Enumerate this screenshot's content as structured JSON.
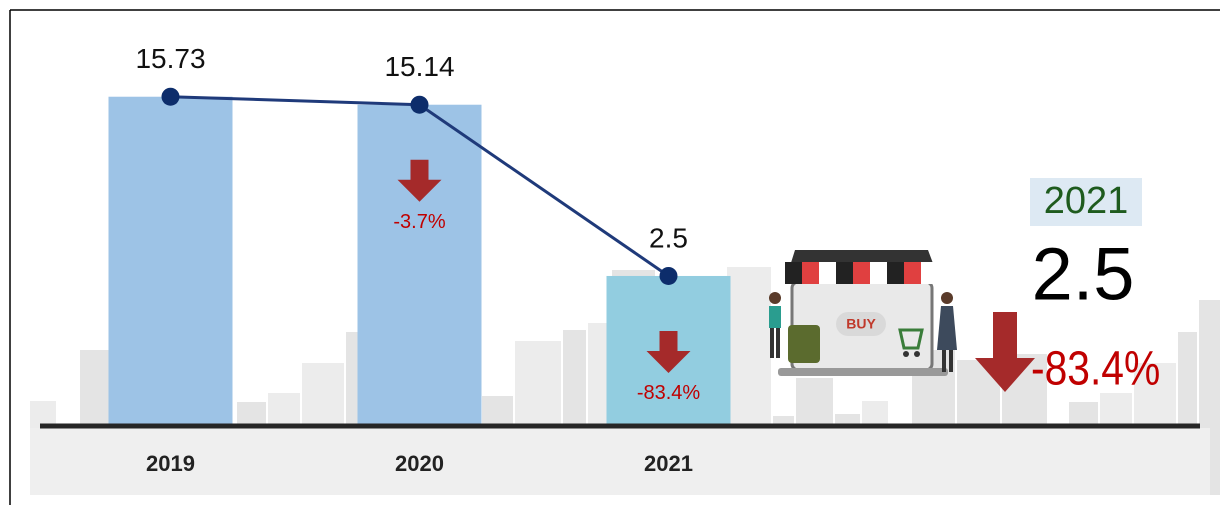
{
  "chart_data": {
    "type": "bar",
    "categories": [
      "2019",
      "2020",
      "2021"
    ],
    "values": [
      15.73,
      15.14,
      2.5
    ],
    "bar_colors": [
      "#9dc3e6",
      "#9dc3e6",
      "#92cde0"
    ],
    "line_color": "#1f3a7a",
    "ylim": [
      -8.5,
      22.5
    ],
    "change_labels": [
      "-3.7%",
      "-83.4%"
    ],
    "highlight": {
      "year": "2021",
      "value": "2.5",
      "change": "-83.4%"
    },
    "shop_sign": "BUY"
  }
}
